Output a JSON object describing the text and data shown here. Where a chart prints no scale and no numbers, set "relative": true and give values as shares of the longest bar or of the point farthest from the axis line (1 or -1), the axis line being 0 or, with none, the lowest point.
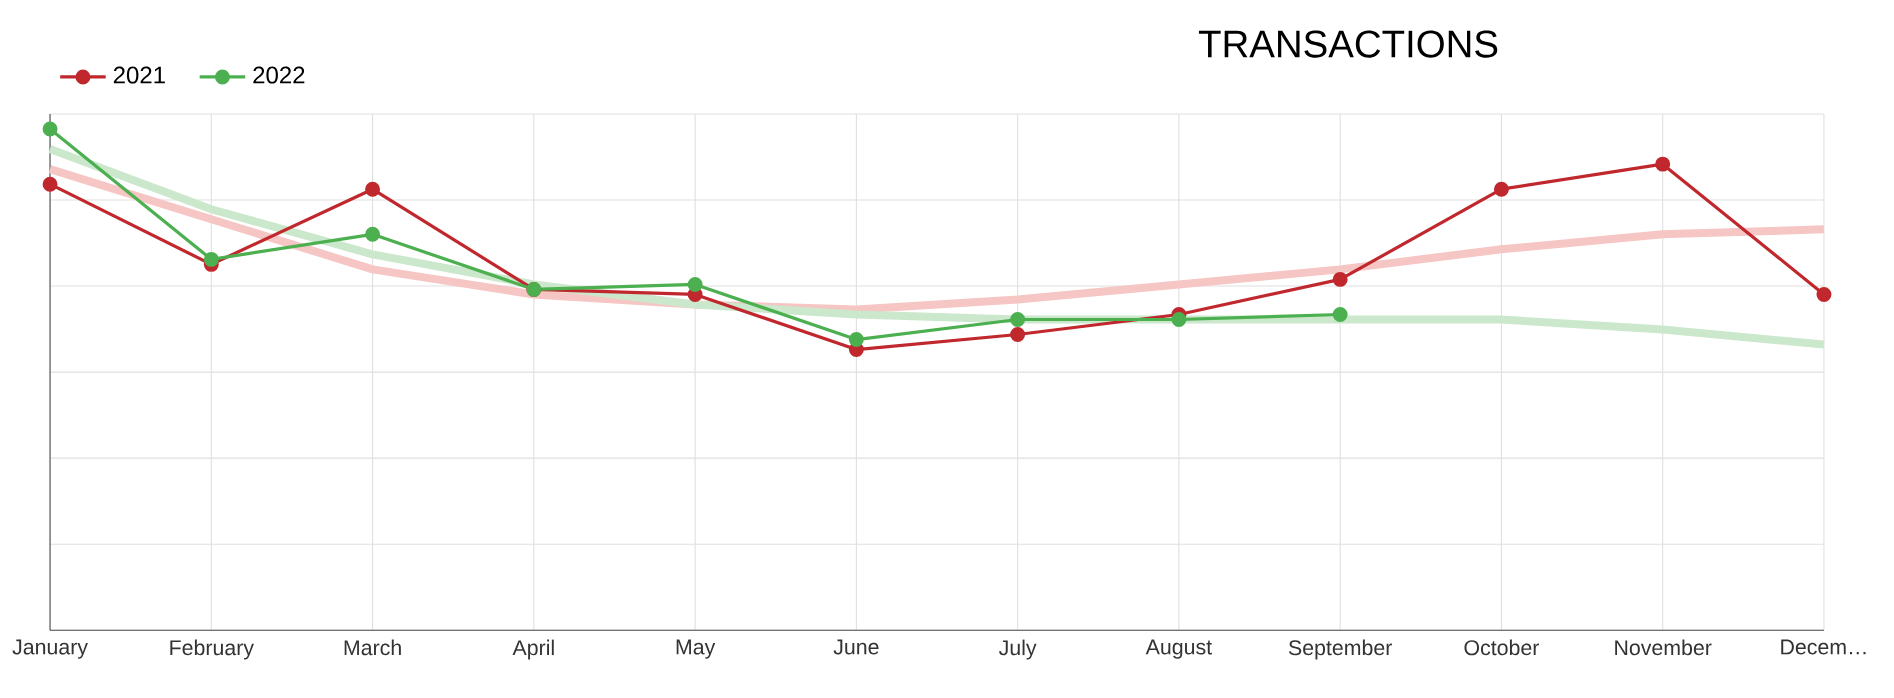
{
  "chart_data": {
    "type": "line",
    "title": "TRANSACTIONS",
    "relative": true,
    "grid": true,
    "legend": "top left",
    "marker": "circle",
    "categories": [
      "January",
      "February",
      "March",
      "April",
      "May",
      "June",
      "July",
      "August",
      "September",
      "October",
      "November",
      "Decem…"
    ],
    "series": [
      {
        "name": "2021",
        "color": "#c0282d",
        "values": [
          0.89,
          0.73,
          0.88,
          0.68,
          0.67,
          0.56,
          0.59,
          0.63,
          0.7,
          0.88,
          0.93,
          0.67
        ]
      },
      {
        "name": "2022",
        "color": "#4caf50",
        "values": [
          1.0,
          0.74,
          0.79,
          0.68,
          0.69,
          0.58,
          0.62,
          0.62,
          0.63,
          null,
          null,
          null
        ]
      },
      {
        "color": "#f5c6c3",
        "marker": "none",
        "values": [
          0.92,
          0.82,
          0.72,
          0.67,
          0.65,
          0.64,
          0.66,
          0.69,
          0.72,
          0.76,
          0.79,
          0.8
        ]
      },
      {
        "color": "#cbe8cc",
        "marker": "none",
        "values": [
          0.96,
          0.84,
          0.75,
          0.69,
          0.65,
          0.63,
          0.62,
          0.62,
          0.62,
          0.62,
          0.6,
          0.57
        ]
      }
    ]
  }
}
